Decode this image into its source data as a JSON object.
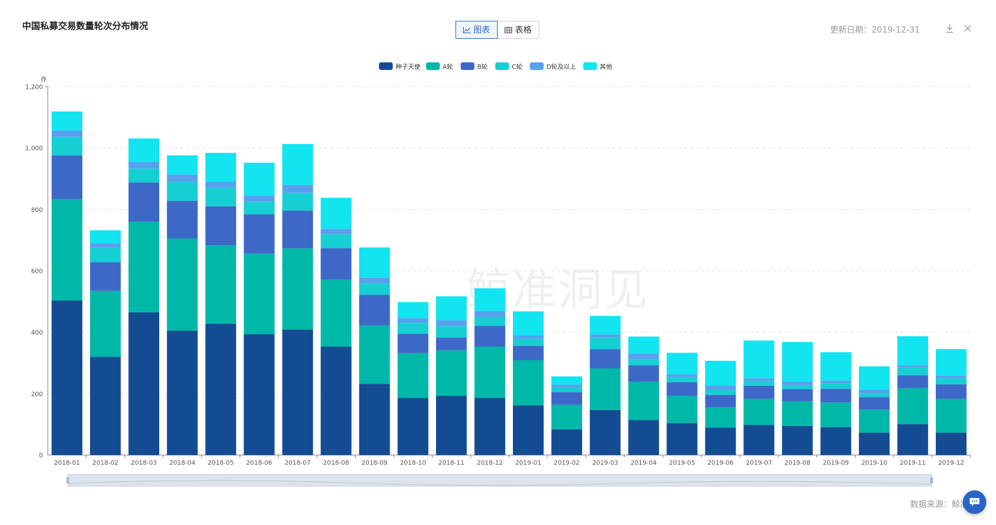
{
  "header": {
    "title": "中国私募交易数量轮次分布情况",
    "tab_chart": "图表",
    "tab_table": "表格",
    "update_label": "更新日期：",
    "update_date": "2019-12-31"
  },
  "footer": {
    "source_label": "数据来源：鲸准"
  },
  "watermark": "鲸准洞见",
  "colors": [
    "#134c93",
    "#00b8a8",
    "#3d68c8",
    "#16cfd3",
    "#57a1ef",
    "#12e4f0"
  ],
  "chart_data": {
    "type": "bar",
    "stacked": true,
    "ylabel": "件",
    "ylim": [
      0,
      1200
    ],
    "yticks": [
      0,
      200,
      400,
      600,
      800,
      1000,
      1200
    ],
    "ytick_labels": [
      "0",
      "200",
      "400",
      "600",
      "800",
      "1,000",
      "1,200"
    ],
    "grid": true,
    "legend_position": "top-center",
    "categories": [
      "2018-01",
      "2018-02",
      "2018-03",
      "2018-04",
      "2018-05",
      "2018-06",
      "2018-07",
      "2018-08",
      "2018-09",
      "2018-10",
      "2018-11",
      "2018-12",
      "2019-01",
      "2019-02",
      "2019-03",
      "2019-04",
      "2019-05",
      "2019-06",
      "2019-07",
      "2019-08",
      "2019-09",
      "2019-10",
      "2019-11",
      "2019-12"
    ],
    "series": [
      {
        "name": "种子天使",
        "values": [
          503,
          320,
          465,
          405,
          428,
          394,
          409,
          353,
          232,
          186,
          193,
          186,
          162,
          84,
          147,
          114,
          104,
          89,
          98,
          95,
          91,
          73,
          101,
          73
        ]
      },
      {
        "name": "A轮",
        "values": [
          330,
          215,
          295,
          300,
          255,
          262,
          264,
          218,
          190,
          146,
          148,
          167,
          147,
          79,
          135,
          125,
          88,
          66,
          85,
          80,
          80,
          75,
          117,
          110
        ]
      },
      {
        "name": "B轮",
        "values": [
          143,
          93,
          128,
          123,
          127,
          128,
          123,
          103,
          100,
          63,
          42,
          68,
          47,
          42,
          63,
          53,
          45,
          41,
          43,
          40,
          45,
          41,
          42,
          47
        ]
      },
      {
        "name": "C轮",
        "values": [
          60,
          47,
          45,
          61,
          60,
          41,
          57,
          45,
          37,
          35,
          37,
          28,
          22,
          15,
          38,
          20,
          16,
          16,
          15,
          13,
          17,
          13,
          25,
          20
        ]
      },
      {
        "name": "D轮及以上",
        "values": [
          21,
          15,
          22,
          25,
          20,
          20,
          27,
          18,
          19,
          16,
          19,
          20,
          12,
          9,
          10,
          19,
          10,
          15,
          9,
          11,
          10,
          11,
          8,
          9
        ]
      },
      {
        "name": "其他",
        "values": [
          62,
          42,
          76,
          62,
          94,
          107,
          133,
          101,
          98,
          52,
          78,
          74,
          78,
          27,
          60,
          55,
          70,
          80,
          123,
          129,
          92,
          76,
          94,
          86
        ]
      }
    ]
  }
}
